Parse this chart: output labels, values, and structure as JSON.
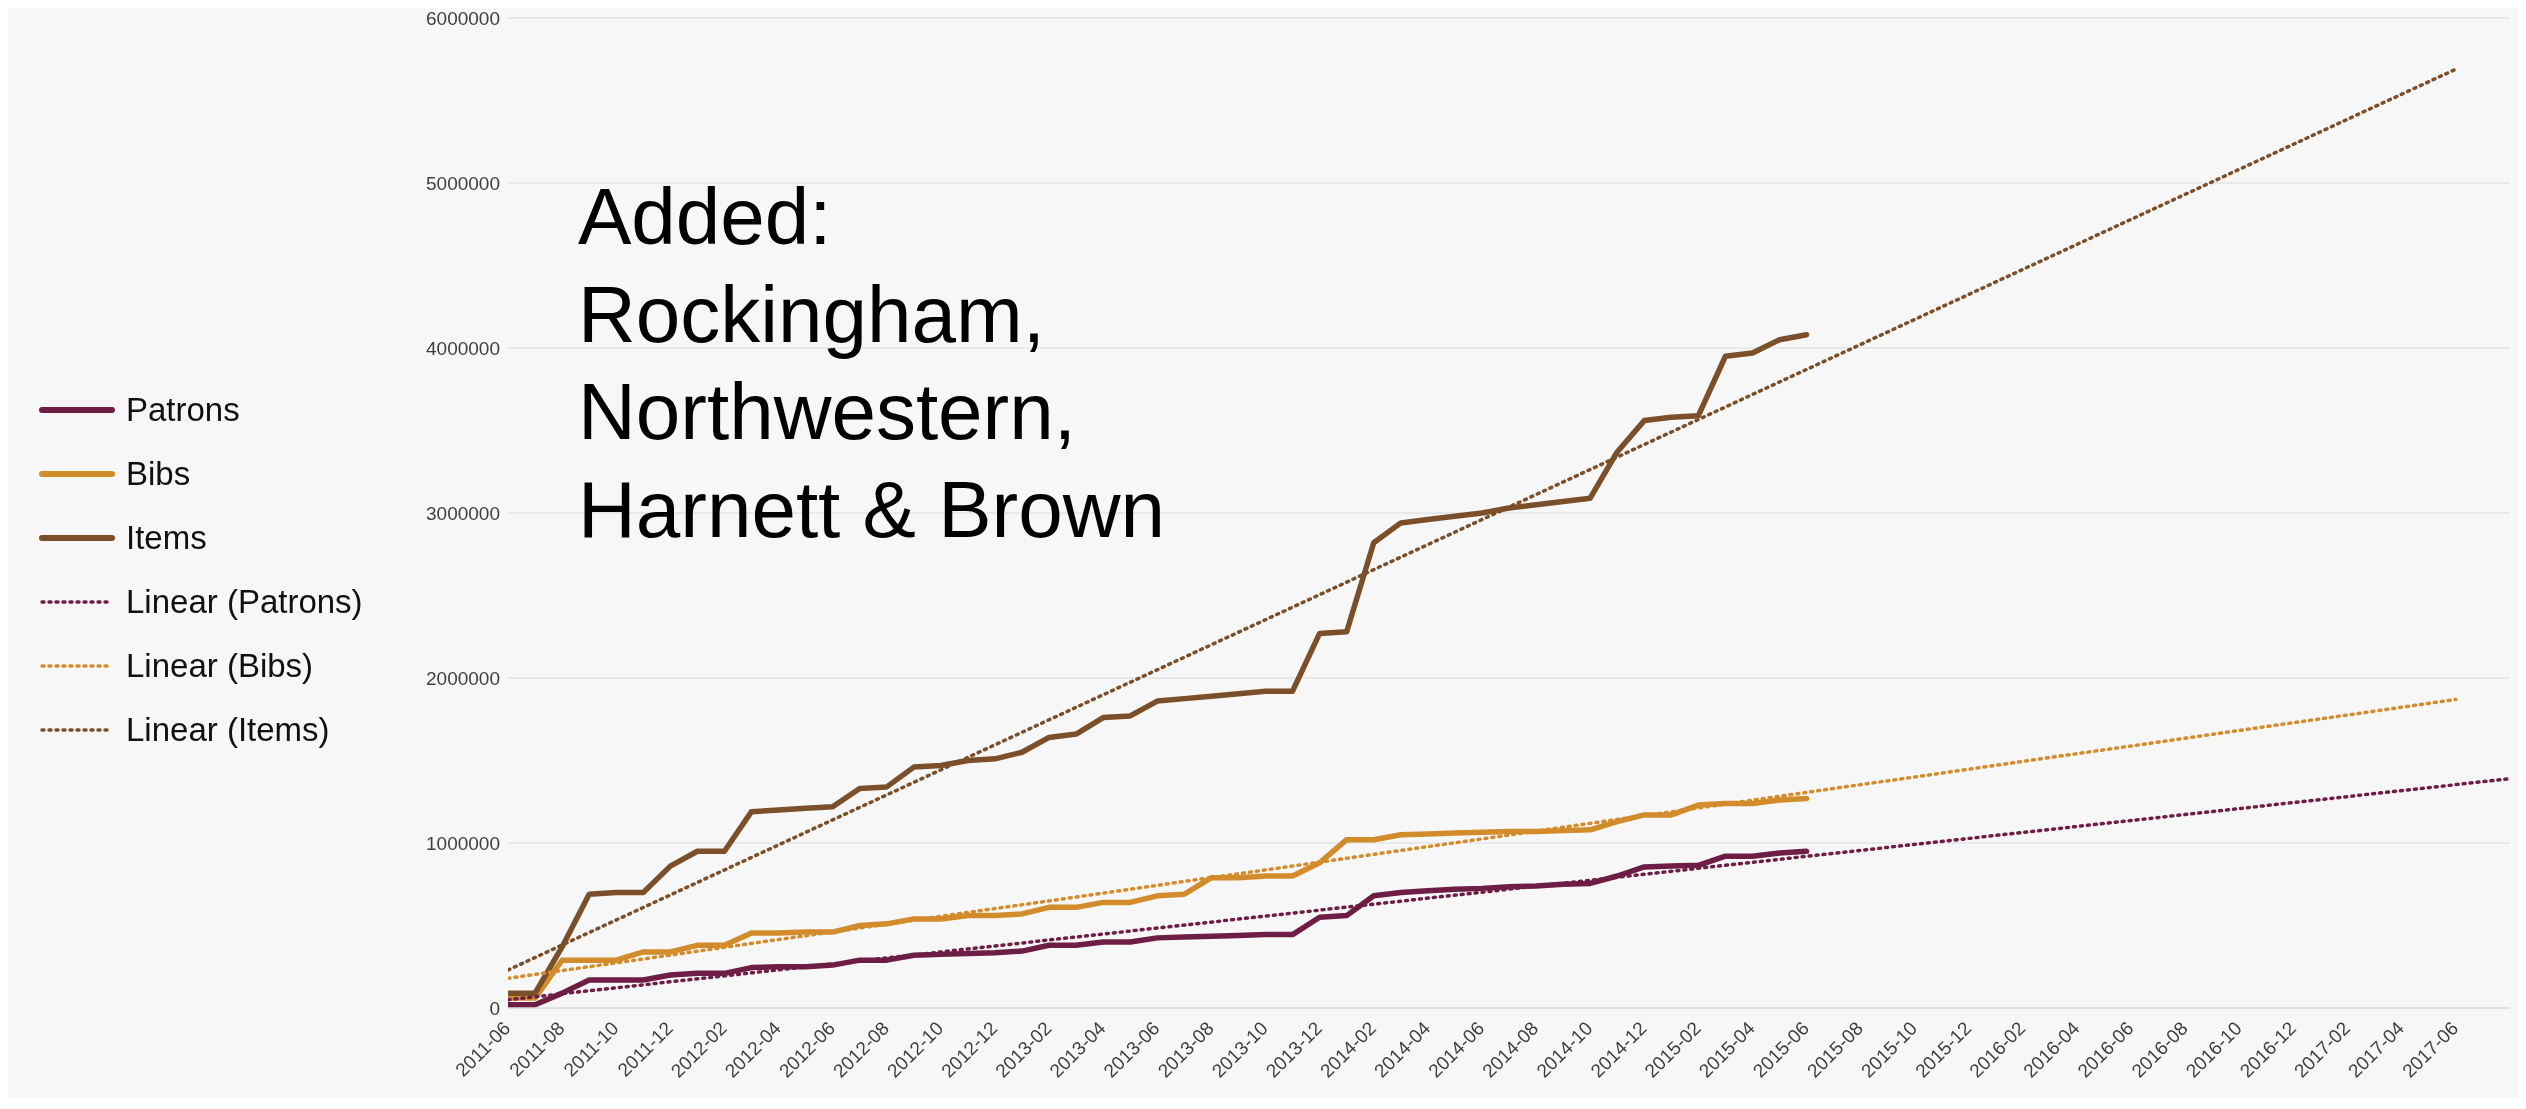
{
  "chart_data": {
    "type": "line",
    "annotations": [
      "Added: Rockingham, Northwestern, Harnett & Brown"
    ],
    "x": [
      "2011-06",
      "2011-07",
      "2011-08",
      "2011-09",
      "2011-10",
      "2011-11",
      "2011-12",
      "2012-01",
      "2012-02",
      "2012-03",
      "2012-04",
      "2012-05",
      "2012-06",
      "2012-07",
      "2012-08",
      "2012-09",
      "2012-10",
      "2012-11",
      "2012-12",
      "2013-01",
      "2013-02",
      "2013-03",
      "2013-04",
      "2013-05",
      "2013-06",
      "2013-07",
      "2013-08",
      "2013-09",
      "2013-10",
      "2013-11",
      "2013-12",
      "2014-01",
      "2014-02",
      "2014-03",
      "2014-04",
      "2014-05",
      "2014-06",
      "2014-07",
      "2014-08",
      "2014-09",
      "2014-10",
      "2014-11",
      "2014-12",
      "2015-01",
      "2015-02",
      "2015-03",
      "2015-04",
      "2015-05",
      "2015-06"
    ],
    "series": [
      {
        "name": "Patrons",
        "color": "#6e1e45",
        "values": [
          20000,
          20000,
          90000,
          170000,
          170000,
          170000,
          200000,
          210000,
          210000,
          245000,
          250000,
          250000,
          260000,
          290000,
          290000,
          320000,
          325000,
          330000,
          335000,
          345000,
          380000,
          380000,
          400000,
          400000,
          425000,
          430000,
          435000,
          440000,
          445000,
          445000,
          550000,
          560000,
          680000,
          700000,
          710000,
          720000,
          725000,
          735000,
          740000,
          750000,
          755000,
          800000,
          855000,
          860000,
          865000,
          920000,
          920000,
          940000,
          950000
        ]
      },
      {
        "name": "Bibs",
        "color": "#d38c2c",
        "values": [
          60000,
          60000,
          290000,
          290000,
          290000,
          340000,
          340000,
          380000,
          380000,
          455000,
          455000,
          460000,
          460000,
          500000,
          510000,
          540000,
          540000,
          560000,
          560000,
          570000,
          610000,
          610000,
          640000,
          640000,
          680000,
          690000,
          790000,
          790000,
          800000,
          800000,
          880000,
          1020000,
          1020000,
          1050000,
          1055000,
          1060000,
          1065000,
          1070000,
          1070000,
          1075000,
          1080000,
          1130000,
          1170000,
          1170000,
          1230000,
          1240000,
          1240000,
          1260000,
          1270000
        ]
      },
      {
        "name": "Items",
        "color": "#7a4f2a",
        "values": [
          90000,
          90000,
          370000,
          690000,
          700000,
          700000,
          860000,
          950000,
          950000,
          1190000,
          1200000,
          1210000,
          1220000,
          1330000,
          1340000,
          1460000,
          1470000,
          1500000,
          1510000,
          1550000,
          1640000,
          1660000,
          1760000,
          1770000,
          1860000,
          1875000,
          1890000,
          1905000,
          1920000,
          1920000,
          2270000,
          2280000,
          2820000,
          2940000,
          2960000,
          2980000,
          3000000,
          3030000,
          3050000,
          3070000,
          3090000,
          3370000,
          3560000,
          3580000,
          3590000,
          3950000,
          3970000,
          4050000,
          4080000
        ]
      },
      {
        "name": "Linear (Patrons)",
        "color": "#6e1e45",
        "line_style": "dotted",
        "x": [
          "2011-06",
          "2017-08"
        ],
        "values": [
          50000,
          1390000
        ]
      },
      {
        "name": "Linear (Bibs)",
        "color": "#d38c2c",
        "line_style": "dotted",
        "x": [
          "2011-06",
          "2017-06"
        ],
        "values": [
          180000,
          1870000
        ]
      },
      {
        "name": "Linear (Items)",
        "color": "#7a4f2a",
        "line_style": "dotted",
        "x": [
          "2011-06",
          "2017-06"
        ],
        "values": [
          230000,
          5690000
        ]
      }
    ],
    "xlim": [
      "2011-06",
      "2017-08"
    ],
    "xticks": [
      "2011-06",
      "2011-08",
      "2011-10",
      "2011-12",
      "2012-02",
      "2012-04",
      "2012-06",
      "2012-08",
      "2012-10",
      "2012-12",
      "2013-02",
      "2013-04",
      "2013-06",
      "2013-08",
      "2013-10",
      "2013-12",
      "2014-02",
      "2014-04",
      "2014-06",
      "2014-08",
      "2014-10",
      "2014-12",
      "2015-02",
      "2015-04",
      "2015-06",
      "2015-08",
      "2015-10",
      "2015-12",
      "2016-02",
      "2016-04",
      "2016-06",
      "2016-08",
      "2016-10",
      "2016-12",
      "2017-02",
      "2017-04",
      "2017-06"
    ],
    "ylim": [
      0,
      6000000
    ],
    "yticks": [
      0,
      1000000,
      2000000,
      3000000,
      4000000,
      5000000,
      6000000
    ],
    "grid": "y",
    "legend": "left",
    "marker": "none",
    "line_style": "solid"
  }
}
